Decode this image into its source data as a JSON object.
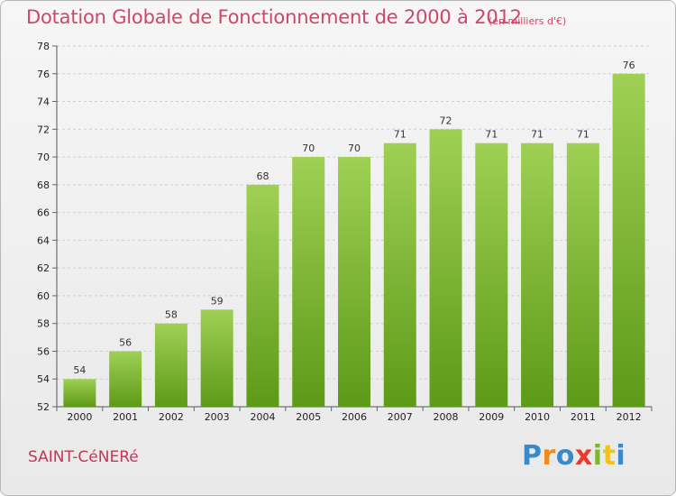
{
  "header": {
    "title": "Dotation Globale de Fonctionnement de 2000 à 2012",
    "unit": "(en milliers d'€)"
  },
  "footer": {
    "commune": "SAINT-CéNERé",
    "brand": [
      "P",
      "r",
      "o",
      "x",
      "i",
      "t",
      "i"
    ]
  },
  "colors": {
    "bar_top": "#9fd055",
    "bar_bottom": "#5d9a17",
    "title": "#d0466a"
  },
  "chart_data": {
    "type": "bar",
    "title": "Dotation Globale de Fonctionnement de 2000 à 2012",
    "xlabel": "",
    "ylabel": "",
    "categories": [
      "2000",
      "2001",
      "2002",
      "2003",
      "2004",
      "2005",
      "2006",
      "2007",
      "2008",
      "2009",
      "2010",
      "2011",
      "2012"
    ],
    "values": [
      54,
      56,
      58,
      59,
      68,
      70,
      70,
      71,
      72,
      71,
      71,
      71,
      76
    ],
    "ylim": [
      52,
      78
    ],
    "yticks": [
      52,
      54,
      56,
      58,
      60,
      62,
      64,
      66,
      68,
      70,
      72,
      74,
      76,
      78
    ],
    "grid": true
  }
}
